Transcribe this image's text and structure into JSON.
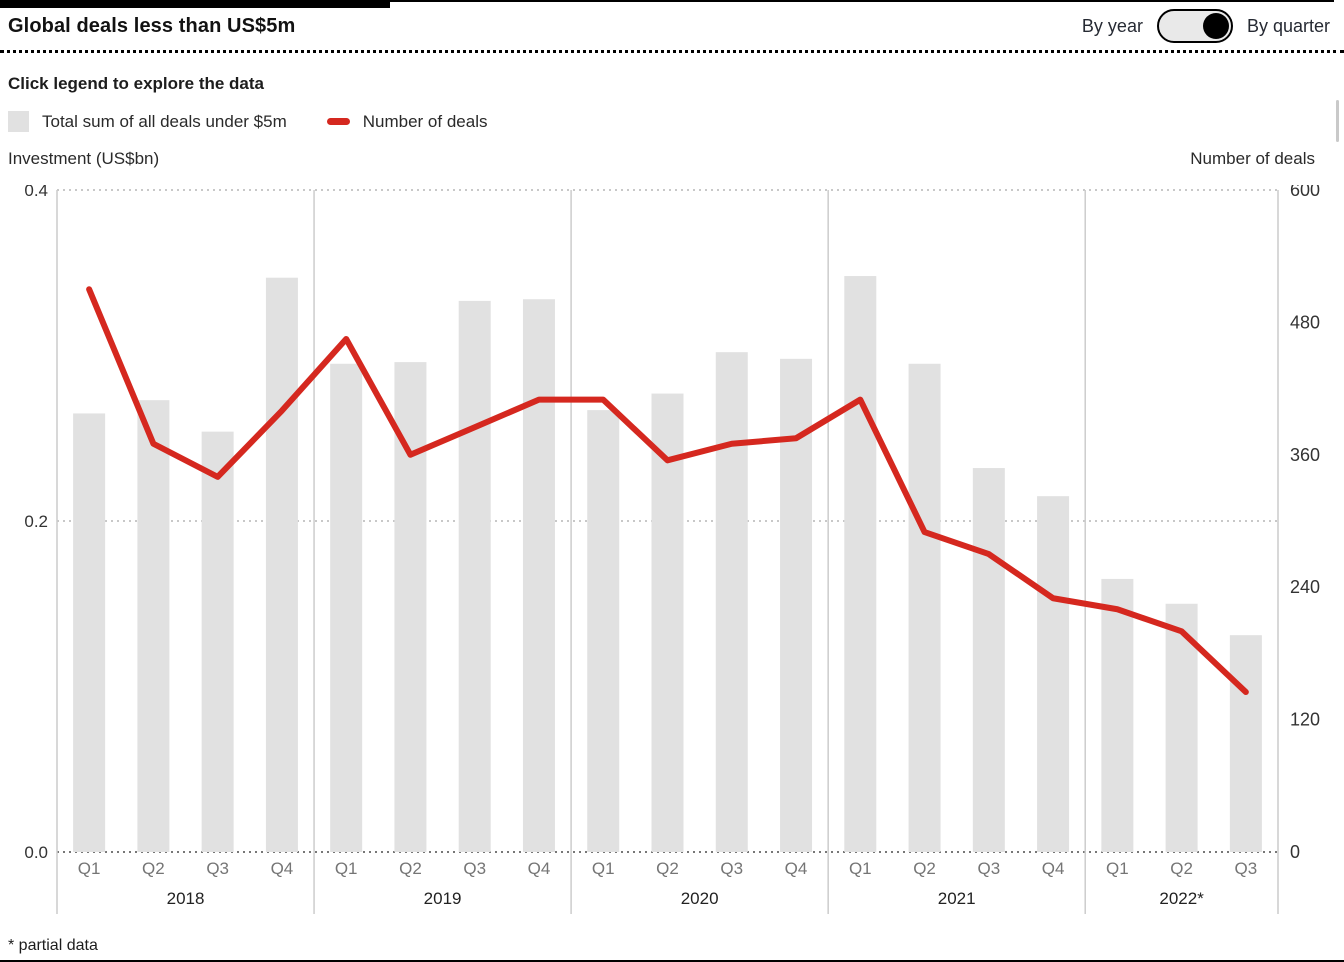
{
  "header": {
    "title": "Global deals less than US$5m",
    "toggle": {
      "left_label": "By year",
      "right_label": "By quarter",
      "knob_position": "right"
    }
  },
  "subtitle": "Click legend to explore the data",
  "legend": [
    {
      "label": "Total sum of all deals under $5m",
      "swatch": "square",
      "color": "#e1e1e1"
    },
    {
      "label": "Number of deals",
      "swatch": "dash",
      "color": "#d5281f"
    }
  ],
  "axis_titles": {
    "left": "Investment (US$bn)",
    "right": "Number of deals"
  },
  "footnote": "* partial data",
  "colors": {
    "bar": "#e1e1e1",
    "line": "#d5281f",
    "grid": "#c8c8c8",
    "baseline": "#777777",
    "separator": "#cccccc",
    "tick_label": "#333333",
    "quarter_label": "#757575",
    "year_label": "#222222"
  },
  "chart_data": {
    "type": "bar+line",
    "groups": [
      {
        "year": "2018",
        "quarters": [
          "Q1",
          "Q2",
          "Q3",
          "Q4"
        ]
      },
      {
        "year": "2019",
        "quarters": [
          "Q1",
          "Q2",
          "Q3",
          "Q4"
        ]
      },
      {
        "year": "2020",
        "quarters": [
          "Q1",
          "Q2",
          "Q3",
          "Q4"
        ]
      },
      {
        "year": "2021",
        "quarters": [
          "Q1",
          "Q2",
          "Q3",
          "Q4"
        ]
      },
      {
        "year": "2022*",
        "quarters": [
          "Q1",
          "Q2",
          "Q3"
        ]
      }
    ],
    "series": [
      {
        "name": "Total sum of all deals under $5m",
        "type": "bar",
        "axis": "left",
        "values": [
          0.265,
          0.273,
          0.254,
          0.347,
          0.295,
          0.296,
          0.333,
          0.334,
          0.267,
          0.277,
          0.302,
          0.298,
          0.348,
          0.295,
          0.232,
          0.215,
          0.165,
          0.15,
          0.131
        ]
      },
      {
        "name": "Number of deals",
        "type": "line",
        "axis": "right",
        "values": [
          510,
          370,
          340,
          400,
          465,
          360,
          385,
          410,
          410,
          355,
          370,
          375,
          410,
          290,
          270,
          230,
          220,
          200,
          145
        ]
      }
    ],
    "left_axis": {
      "title": "Investment (US$bn)",
      "range": [
        0,
        0.4
      ],
      "ticks": [
        {
          "value": 0,
          "label": "0.0"
        },
        {
          "value": 0.2,
          "label": "0.2"
        },
        {
          "value": 0.4,
          "label": "0.4"
        }
      ]
    },
    "right_axis": {
      "title": "Number of deals",
      "range": [
        0,
        600
      ],
      "ticks": [
        {
          "value": 0,
          "label": "0"
        },
        {
          "value": 120,
          "label": "120"
        },
        {
          "value": 240,
          "label": "240"
        },
        {
          "value": 360,
          "label": "360"
        },
        {
          "value": 480,
          "label": "480"
        },
        {
          "value": 600,
          "label": "600"
        }
      ]
    },
    "gridlines_at_left_values": [
      0,
      0.2,
      0.4
    ],
    "legend_position": "top-left",
    "grid": "dotted-horizontal"
  }
}
